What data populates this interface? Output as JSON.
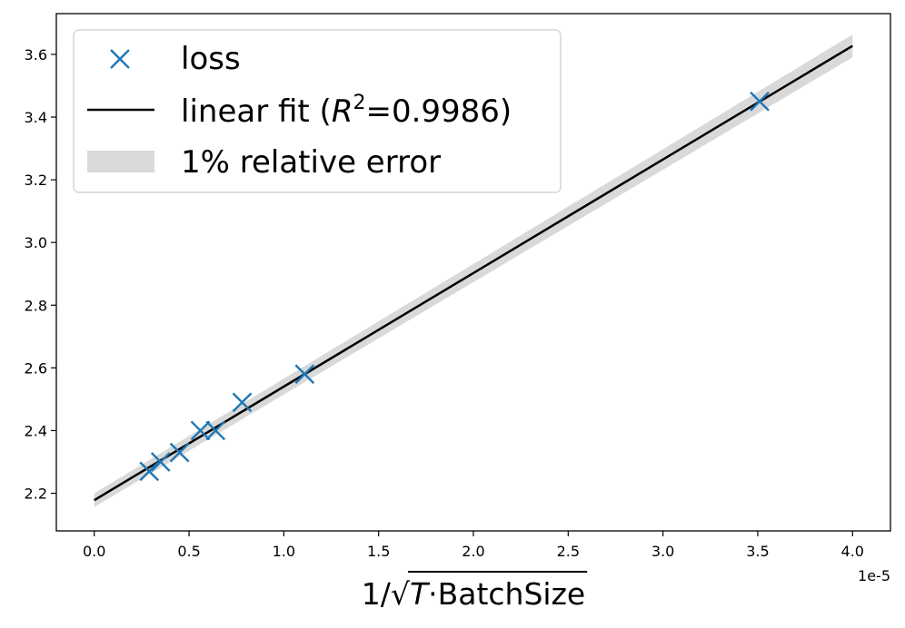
{
  "chart_data": {
    "type": "scatter",
    "xlabel": "1/√T · BatchSize",
    "x_offset_label": "1e-5",
    "xlim": [
      -2e-06,
      4.2e-05
    ],
    "ylim": [
      2.08,
      3.73
    ],
    "x_ticks": [
      0,
      5e-06,
      1e-05,
      1.5e-05,
      2e-05,
      2.5e-05,
      3e-05,
      3.5e-05,
      4e-05
    ],
    "x_tick_labels": [
      "0.0",
      "0.5",
      "1.0",
      "1.5",
      "2.0",
      "2.5",
      "3.0",
      "3.5",
      "4.0"
    ],
    "y_ticks": [
      2.2,
      2.4,
      2.6,
      2.8,
      3.0,
      3.2,
      3.4,
      3.6
    ],
    "y_tick_labels": [
      "2.2",
      "2.4",
      "2.6",
      "2.8",
      "3.0",
      "3.2",
      "3.4",
      "3.6"
    ],
    "grid": false,
    "legend_position": "top-left",
    "series": [
      {
        "name": "loss",
        "kind": "scatter",
        "marker": "x",
        "color": "#1f77b4",
        "x": [
          2.9e-06,
          3.5e-06,
          4.5e-06,
          5.6e-06,
          6.4e-06,
          7.8e-06,
          1.11e-05,
          3.51e-05
        ],
        "y": [
          2.27,
          2.3,
          2.33,
          2.4,
          2.4,
          2.49,
          2.58,
          3.45
        ]
      },
      {
        "name": "linear fit",
        "r2_value": "0.9986",
        "kind": "line",
        "color": "#000000",
        "x": [
          0,
          4e-05
        ],
        "y": [
          2.178,
          3.627
        ]
      },
      {
        "name": "1% relative error",
        "kind": "band",
        "color": "#d9d9d9",
        "relative_error": 0.01
      }
    ]
  }
}
